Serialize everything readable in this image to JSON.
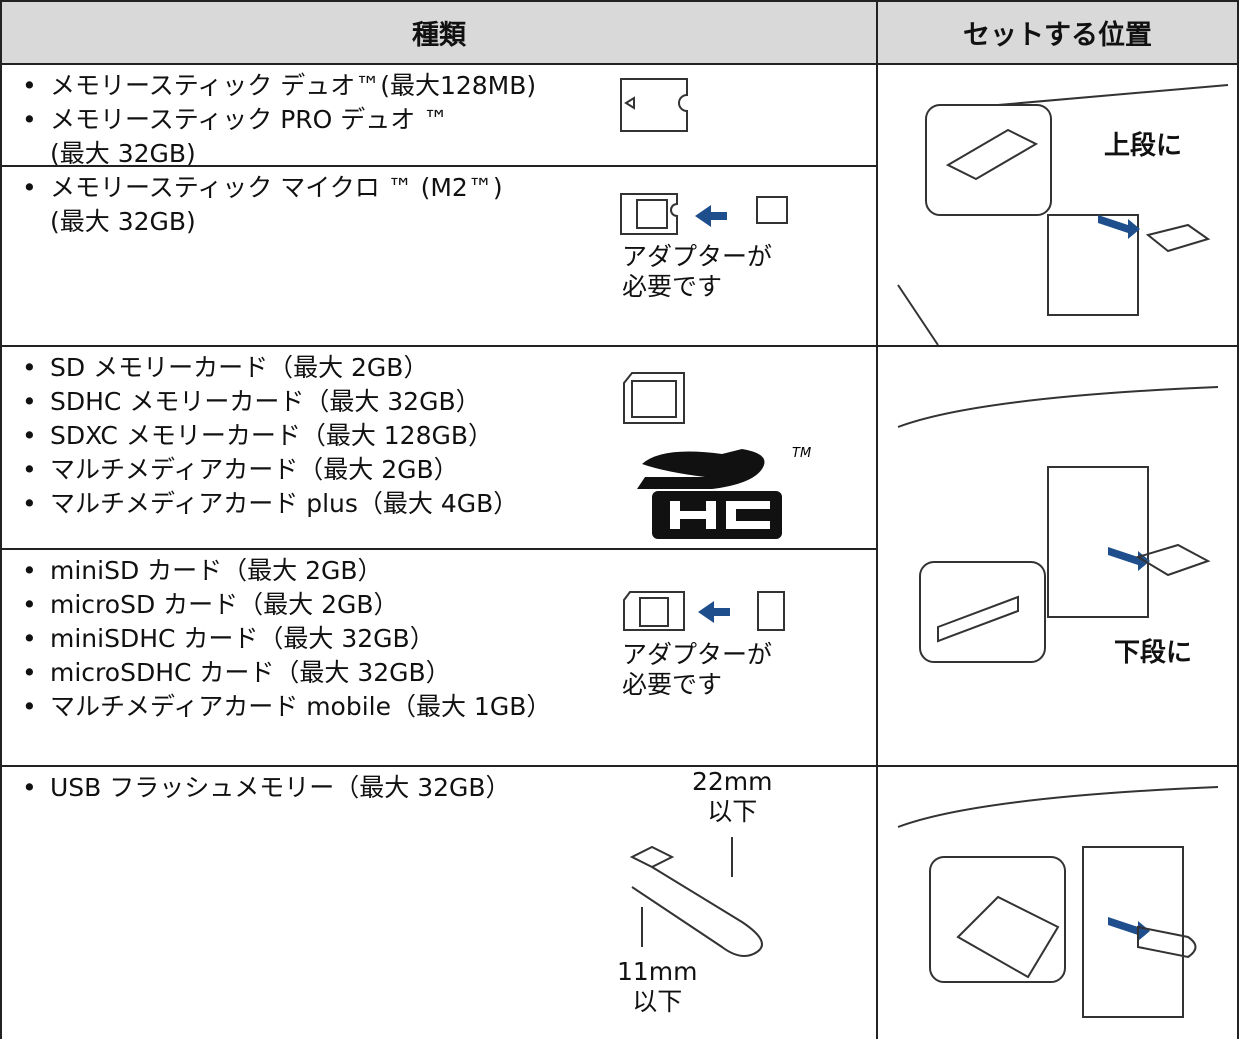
{
  "header": {
    "type_col": "種類",
    "position_col": "セットする位置"
  },
  "rows": [
    {
      "items": [
        "メモリースティック デュオ™(最大128MB)",
        "メモリースティック PRO デュオ ™\n(最大 32GB)"
      ]
    },
    {
      "items": [
        "メモリースティック マイクロ ™ (M2™)\n(最大 32GB)"
      ],
      "note": "アダプターが\n必要です"
    },
    {
      "items": [
        "SD メモリーカード（最大 2GB）",
        "SDHC メモリーカード（最大 32GB）",
        "SDXC メモリーカード（最大 128GB）",
        "マルチメディアカード（最大 2GB）",
        "マルチメディアカード plus（最大 4GB）"
      ],
      "logo_mark": "TM"
    },
    {
      "items": [
        "miniSD カード（最大 2GB）",
        "microSD カード（最大 2GB）",
        "miniSDHC カード（最大 32GB）",
        "microSDHC カード（最大 32GB）",
        "マルチメディアカード mobile（最大 1GB）"
      ],
      "note": "アダプターが\n必要です"
    },
    {
      "items": [
        "USB フラッシュメモリー（最大 32GB）"
      ],
      "width_label": "22mm\n以下",
      "thickness_label": "11mm\n以下"
    }
  ],
  "positions": [
    {
      "label": "上段に"
    },
    {
      "label": "下段に"
    }
  ]
}
